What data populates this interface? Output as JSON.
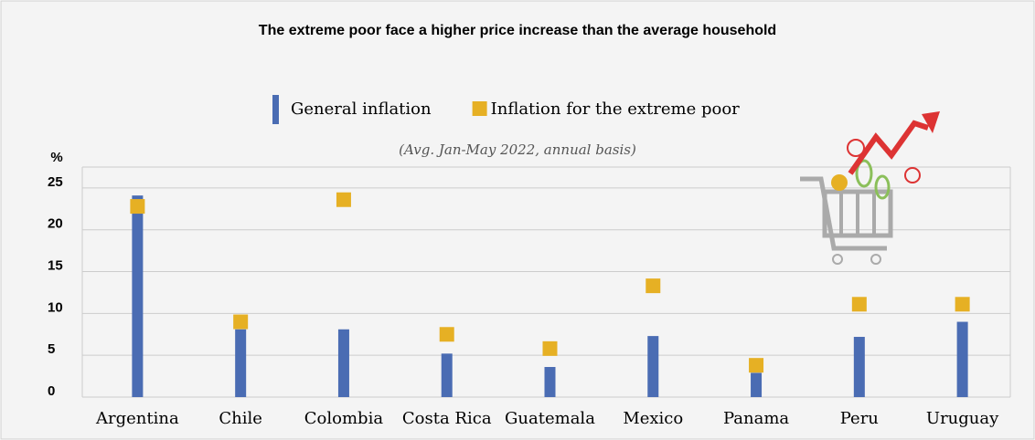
{
  "chart_data": {
    "type": "bar_dot",
    "title": "The extreme poor face a higher price increase than the average household",
    "subtitle": "(Avg. Jan-May 2022, annual basis)",
    "y_label": "%",
    "categories": [
      "Argentina",
      "Chile",
      "Colombia",
      "Costa Rica",
      "Guatemala",
      "Mexico",
      "Panama",
      "Peru",
      "Uruguay"
    ],
    "series": [
      {
        "name": "General inflation",
        "color": "#4a6cb3",
        "mark": "bar",
        "values": [
          24.1,
          8.1,
          8.1,
          5.2,
          3.6,
          7.3,
          2.9,
          7.2,
          9.0
        ]
      },
      {
        "name": "Inflation for the extreme poor",
        "color": "#e6b024",
        "mark": "square",
        "values": [
          22.8,
          9.0,
          23.6,
          7.5,
          5.8,
          13.3,
          3.8,
          11.1,
          11.1
        ]
      }
    ],
    "ylim": [
      0,
      27.5
    ],
    "yticks": [
      0,
      5,
      10,
      15,
      20,
      25
    ],
    "grid": true,
    "legend": "top"
  }
}
